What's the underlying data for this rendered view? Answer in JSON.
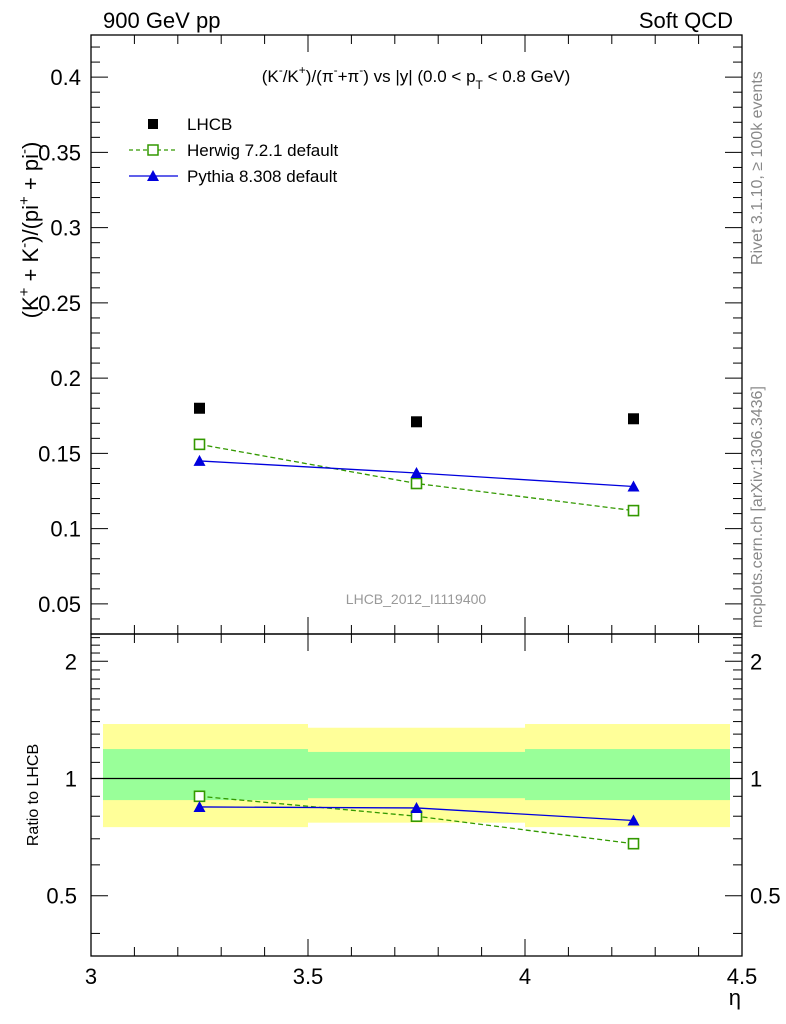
{
  "header": {
    "left": "900 GeV pp",
    "right": "Soft QCD"
  },
  "side_labels": {
    "rivet": "Rivet 3.1.10, ≥ 100k events",
    "mcplots": "mcplots.cern.ch [arXiv:1306.3436]"
  },
  "watermark": "LHCB_2012_I1119400",
  "colors": {
    "lhcb": "#000000",
    "herwig": "#339900",
    "pythia": "#0000dd",
    "band_outer": "#ffff99",
    "band_inner": "#99ff99"
  },
  "chart_data": [
    {
      "type": "scatter",
      "panel": "main",
      "title": "(K⁻/K⁺)/(π⁻+π⁻) vs |y| (0.0 < pT < 0.8 GeV)",
      "title_parts": {
        "k_ratio": "(K",
        "k_minus": "-",
        "k_mid": "/K",
        "k_plus": "+",
        "pi_open": ")/(π",
        "pi_minus1": "-",
        "pi_plus_sign": "+π",
        "pi_minus2": "-",
        "tail_a": ") vs |y| (0.0 < p",
        "t_sub": "T",
        "tail_b": " < 0.8 GeV)"
      },
      "ylabel": "(K⁺ + K⁻)/(pi⁺ + pi⁻)",
      "ylabel_parts": {
        "a": "(K",
        "a_sup": "+",
        "b": " + K",
        "b_sup": "-",
        "c": ")/(pi",
        "c_sup": "+",
        "d": " + pi",
        "d_sup": "-",
        "e": ")"
      },
      "xlim": [
        3.0,
        4.5
      ],
      "ylim": [
        0.03,
        0.428
      ],
      "yticks": [
        0.05,
        0.1,
        0.15,
        0.2,
        0.25,
        0.3,
        0.35,
        0.4
      ],
      "ytick_labels": [
        "0.05",
        "0.1",
        "0.15",
        "0.2",
        "0.25",
        "0.3",
        "0.35",
        "0.4"
      ],
      "x": [
        3.25,
        3.75,
        4.25
      ],
      "series": [
        {
          "name": "LHCB",
          "values": [
            0.18,
            0.171,
            0.173
          ],
          "marker": "square-filled",
          "line": "none"
        },
        {
          "name": "Herwig 7.2.1 default",
          "values": [
            0.156,
            0.13,
            0.112
          ],
          "marker": "square-open",
          "line": "dashed"
        },
        {
          "name": "Pythia 8.308 default",
          "values": [
            0.145,
            0.137,
            0.128
          ],
          "marker": "triangle-filled",
          "line": "solid"
        }
      ],
      "legend": [
        "LHCB",
        "Herwig 7.2.1 default",
        "Pythia 8.308 default"
      ],
      "legend_position": "top-left"
    },
    {
      "type": "scatter",
      "panel": "ratio",
      "ylabel": "Ratio to LHCB",
      "xlabel": "η",
      "xlim": [
        3.0,
        4.5
      ],
      "ylim": [
        0.35,
        2.35
      ],
      "yscale": "log",
      "xticks": [
        3.0,
        3.5,
        4.0,
        4.5
      ],
      "xtick_labels": [
        "3",
        "3.5",
        "4",
        "4.5"
      ],
      "yticks": [
        0.5,
        1,
        2
      ],
      "ytick_labels": [
        "0.5",
        "1",
        "2"
      ],
      "reference_line": 1.0,
      "bands": [
        {
          "x_range": [
            3.0,
            3.5
          ],
          "outer": [
            0.75,
            1.38
          ],
          "inner": [
            0.88,
            1.19
          ]
        },
        {
          "x_range": [
            3.5,
            4.0
          ],
          "outer": [
            0.77,
            1.35
          ],
          "inner": [
            0.89,
            1.17
          ]
        },
        {
          "x_range": [
            4.0,
            4.5
          ],
          "outer": [
            0.75,
            1.38
          ],
          "inner": [
            0.88,
            1.19
          ]
        }
      ],
      "x": [
        3.25,
        3.75,
        4.25
      ],
      "series": [
        {
          "name": "Herwig 7.2.1 default",
          "values": [
            0.9,
            0.8,
            0.68
          ]
        },
        {
          "name": "Pythia 8.308 default",
          "values": [
            0.845,
            0.84,
            0.78
          ]
        }
      ]
    }
  ]
}
